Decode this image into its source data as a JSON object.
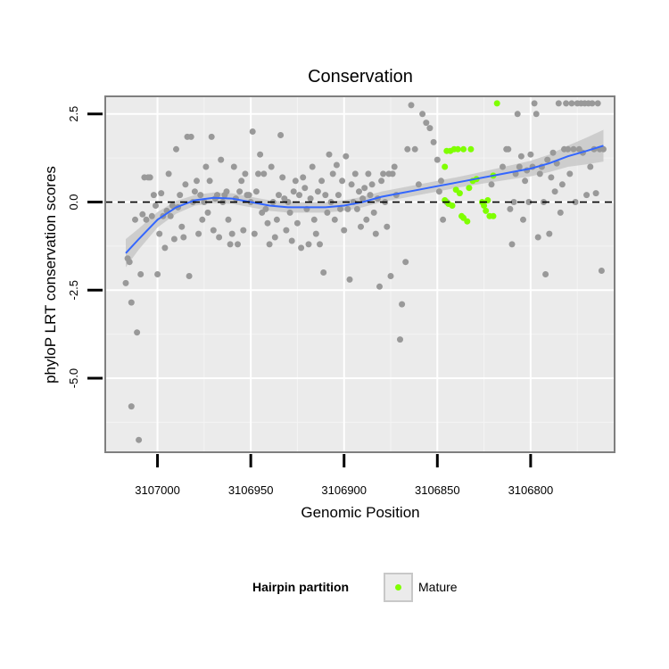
{
  "chart_data": {
    "type": "scatter",
    "title": "Conservation",
    "xlabel": "Genomic Position",
    "ylabel": "phyloP LRT conservation scores",
    "xlim": [
      3107028,
      3106755
    ],
    "ylim": [
      -7.1,
      3.0
    ],
    "x_reversed": true,
    "x_ticks": [
      3107000,
      3106950,
      3106900,
      3106850,
      3106800
    ],
    "y_ticks": [
      2.5,
      0.0,
      -2.5,
      -5.0
    ],
    "y_tick_labels": [
      "2.5",
      "0.0",
      "-2.5",
      "-5.0"
    ],
    "reference_line": {
      "y": 0,
      "style": "dashed",
      "color": "#000000"
    },
    "grid": true,
    "colors": {
      "background": "#ebebeb",
      "panel_border": "#7f7f7f",
      "other_points": "#999999",
      "mature_points": "#7fff00",
      "smooth_line": "#3366ff",
      "ribbon": "#c8c8c8"
    },
    "legend": {
      "title": "Hairpin partition",
      "position": "bottom",
      "entries": [
        {
          "label": "Mature",
          "color": "#7fff00"
        }
      ]
    },
    "series": [
      {
        "name": "Mature",
        "color": "#7fff00",
        "points": [
          [
            3106846,
            1.0
          ],
          [
            3106845,
            1.45
          ],
          [
            3106843,
            1.45
          ],
          [
            3106841,
            1.5
          ],
          [
            3106839,
            1.5
          ],
          [
            3106836,
            1.5
          ],
          [
            3106832,
            1.5
          ],
          [
            3106846,
            0.05
          ],
          [
            3106844,
            -0.05
          ],
          [
            3106842,
            -0.1
          ],
          [
            3106840,
            0.35
          ],
          [
            3106838,
            0.25
          ],
          [
            3106836,
            -0.45
          ],
          [
            3106834,
            -0.55
          ],
          [
            3106837,
            -0.4
          ],
          [
            3106833,
            0.4
          ],
          [
            3106831,
            0.6
          ],
          [
            3106829,
            0.65
          ],
          [
            3106826,
            0.0
          ],
          [
            3106824,
            -0.25
          ],
          [
            3106822,
            -0.4
          ],
          [
            3106820,
            -0.4
          ],
          [
            3106825,
            -0.1
          ],
          [
            3106823,
            0.05
          ],
          [
            3106820,
            0.75
          ],
          [
            3106818,
            2.8
          ]
        ]
      },
      {
        "name": "",
        "color": "#999999",
        "points": [
          [
            3107017,
            -2.3
          ],
          [
            3107016,
            -1.6
          ],
          [
            3107015,
            -1.7
          ],
          [
            3107014,
            -2.85
          ],
          [
            3107014,
            -5.8
          ],
          [
            3107012,
            -0.5
          ],
          [
            3107011,
            -3.7
          ],
          [
            3107010,
            -6.75
          ],
          [
            3107009,
            -2.05
          ],
          [
            3107008,
            -0.35
          ],
          [
            3107007,
            0.7
          ],
          [
            3107006,
            -0.5
          ],
          [
            3107005,
            0.7
          ],
          [
            3107004,
            0.7
          ],
          [
            3107003,
            -0.4
          ],
          [
            3107002,
            0.2
          ],
          [
            3107001,
            -0.1
          ],
          [
            3107000,
            -2.05
          ],
          [
            3106999,
            -0.9
          ],
          [
            3106998,
            0.25
          ],
          [
            3106997,
            -0.4
          ],
          [
            3106996,
            -1.3
          ],
          [
            3106995,
            -0.25
          ],
          [
            3106994,
            0.8
          ],
          [
            3106993,
            -0.4
          ],
          [
            3106992,
            -0.1
          ],
          [
            3106991,
            -1.05
          ],
          [
            3106990,
            1.5
          ],
          [
            3106989,
            -0.15
          ],
          [
            3106988,
            0.2
          ],
          [
            3106987,
            -0.7
          ],
          [
            3106986,
            -1.0
          ],
          [
            3106985,
            0.5
          ],
          [
            3106984,
            1.85
          ],
          [
            3106983,
            -2.1
          ],
          [
            3106982,
            1.85
          ],
          [
            3106981,
            0.0
          ],
          [
            3106980,
            0.3
          ],
          [
            3106979,
            0.6
          ],
          [
            3106978,
            -0.9
          ],
          [
            3106977,
            0.2
          ],
          [
            3106976,
            -0.5
          ],
          [
            3106975,
            0.0
          ],
          [
            3106974,
            1.0
          ],
          [
            3106973,
            -0.3
          ],
          [
            3106972,
            0.6
          ],
          [
            3106971,
            1.85
          ],
          [
            3106970,
            -0.8
          ],
          [
            3106969,
            0.1
          ],
          [
            3106968,
            0.2
          ],
          [
            3106967,
            -1.0
          ],
          [
            3106966,
            1.2
          ],
          [
            3106965,
            0.0
          ],
          [
            3106964,
            0.2
          ],
          [
            3106963,
            0.3
          ],
          [
            3106962,
            -0.5
          ],
          [
            3106961,
            -1.2
          ],
          [
            3106960,
            -0.9
          ],
          [
            3106959,
            1.0
          ],
          [
            3106958,
            0.1
          ],
          [
            3106957,
            -1.2
          ],
          [
            3106956,
            0.3
          ],
          [
            3106955,
            0.6
          ],
          [
            3106954,
            -0.8
          ],
          [
            3106953,
            0.8
          ],
          [
            3106952,
            0.2
          ],
          [
            3106951,
            0.2
          ],
          [
            3106950,
            0.0
          ],
          [
            3106949,
            2.0
          ],
          [
            3106948,
            -0.9
          ],
          [
            3106947,
            0.3
          ],
          [
            3106946,
            0.8
          ],
          [
            3106945,
            1.35
          ],
          [
            3106944,
            -0.3
          ],
          [
            3106943,
            0.8
          ],
          [
            3106942,
            -0.2
          ],
          [
            3106941,
            -0.6
          ],
          [
            3106940,
            -1.2
          ],
          [
            3106939,
            1.0
          ],
          [
            3106938,
            0.0
          ],
          [
            3106937,
            -1.0
          ],
          [
            3106936,
            -0.5
          ],
          [
            3106935,
            0.2
          ],
          [
            3106934,
            1.9
          ],
          [
            3106933,
            0.7
          ],
          [
            3106932,
            0.1
          ],
          [
            3106931,
            -0.8
          ],
          [
            3106930,
            0.0
          ],
          [
            3106929,
            -0.3
          ],
          [
            3106928,
            -1.1
          ],
          [
            3106927,
            0.3
          ],
          [
            3106926,
            0.6
          ],
          [
            3106925,
            -0.6
          ],
          [
            3106924,
            0.2
          ],
          [
            3106923,
            -1.3
          ],
          [
            3106922,
            0.7
          ],
          [
            3106921,
            0.4
          ],
          [
            3106920,
            -0.2
          ],
          [
            3106919,
            -1.2
          ],
          [
            3106918,
            0.1
          ],
          [
            3106917,
            1.0
          ],
          [
            3106916,
            -0.5
          ],
          [
            3106915,
            -0.9
          ],
          [
            3106914,
            0.3
          ],
          [
            3106913,
            -1.2
          ],
          [
            3106912,
            0.6
          ],
          [
            3106911,
            -2.0
          ],
          [
            3106910,
            0.2
          ],
          [
            3106909,
            -0.3
          ],
          [
            3106908,
            1.35
          ],
          [
            3106907,
            0.0
          ],
          [
            3106906,
            0.8
          ],
          [
            3106905,
            -0.5
          ],
          [
            3106904,
            1.05
          ],
          [
            3106903,
            0.2
          ],
          [
            3106902,
            -0.2
          ],
          [
            3106901,
            0.6
          ],
          [
            3106900,
            -0.8
          ],
          [
            3106899,
            1.3
          ],
          [
            3106898,
            -0.2
          ],
          [
            3106897,
            -2.2
          ],
          [
            3106896,
            0.5
          ],
          [
            3106895,
            0.0
          ],
          [
            3106894,
            0.8
          ],
          [
            3106893,
            -0.2
          ],
          [
            3106892,
            0.3
          ],
          [
            3106891,
            -0.7
          ],
          [
            3106890,
            0.1
          ],
          [
            3106889,
            0.4
          ],
          [
            3106888,
            -0.5
          ],
          [
            3106887,
            0.8
          ],
          [
            3106886,
            0.2
          ],
          [
            3106885,
            0.5
          ],
          [
            3106884,
            -0.3
          ],
          [
            3106883,
            -0.9
          ],
          [
            3106882,
            0.1
          ],
          [
            3106881,
            -2.4
          ],
          [
            3106880,
            0.6
          ],
          [
            3106879,
            0.8
          ],
          [
            3106878,
            0.0
          ],
          [
            3106877,
            -0.7
          ],
          [
            3106876,
            0.8
          ],
          [
            3106875,
            -2.1
          ],
          [
            3106874,
            0.8
          ],
          [
            3106873,
            1.0
          ],
          [
            3106872,
            0.2
          ],
          [
            3106870,
            -3.9
          ],
          [
            3106869,
            -2.9
          ],
          [
            3106867,
            -1.7
          ],
          [
            3106866,
            1.5
          ],
          [
            3106864,
            2.75
          ],
          [
            3106862,
            1.5
          ],
          [
            3106860,
            0.5
          ],
          [
            3106858,
            2.5
          ],
          [
            3106856,
            2.25
          ],
          [
            3106854,
            2.1
          ],
          [
            3106852,
            1.7
          ],
          [
            3106850,
            1.2
          ],
          [
            3106849,
            0.3
          ],
          [
            3106848,
            0.6
          ],
          [
            3106815,
            1.0
          ],
          [
            3106813,
            1.5
          ],
          [
            3106812,
            1.5
          ],
          [
            3106811,
            -0.2
          ],
          [
            3106810,
            -1.2
          ],
          [
            3106809,
            0.0
          ],
          [
            3106808,
            0.8
          ],
          [
            3106807,
            2.5
          ],
          [
            3106806,
            1.0
          ],
          [
            3106805,
            1.3
          ],
          [
            3106804,
            -0.5
          ],
          [
            3106803,
            0.6
          ],
          [
            3106802,
            0.9
          ],
          [
            3106801,
            0.0
          ],
          [
            3106800,
            1.35
          ],
          [
            3106799,
            1.0
          ],
          [
            3106798,
            2.8
          ],
          [
            3106797,
            2.5
          ],
          [
            3106796,
            -1.0
          ],
          [
            3106795,
            0.8
          ],
          [
            3106794,
            1.0
          ],
          [
            3106793,
            0.0
          ],
          [
            3106792,
            -2.05
          ],
          [
            3106791,
            1.2
          ],
          [
            3106790,
            -0.9
          ],
          [
            3106789,
            0.7
          ],
          [
            3106788,
            1.4
          ],
          [
            3106787,
            0.3
          ],
          [
            3106786,
            1.1
          ],
          [
            3106785,
            2.8
          ],
          [
            3106784,
            -0.3
          ],
          [
            3106783,
            0.5
          ],
          [
            3106782,
            1.5
          ],
          [
            3106781,
            2.8
          ],
          [
            3106780,
            1.5
          ],
          [
            3106779,
            0.8
          ],
          [
            3106778,
            2.8
          ],
          [
            3106777,
            1.5
          ],
          [
            3106776,
            0.0
          ],
          [
            3106775,
            2.8
          ],
          [
            3106774,
            1.5
          ],
          [
            3106773,
            2.8
          ],
          [
            3106772,
            1.4
          ],
          [
            3106771,
            2.8
          ],
          [
            3106770,
            0.2
          ],
          [
            3106769,
            2.8
          ],
          [
            3106768,
            1.0
          ],
          [
            3106767,
            2.8
          ],
          [
            3106766,
            1.5
          ],
          [
            3106765,
            0.25
          ],
          [
            3106764,
            2.8
          ],
          [
            3106763,
            1.5
          ],
          [
            3106762,
            -1.95
          ],
          [
            3106761,
            1.5
          ],
          [
            3106845,
            0.0
          ],
          [
            3106847,
            -0.5
          ],
          [
            3106821,
            0.5
          ]
        ]
      }
    ],
    "smooth": {
      "x": [
        3107017,
        3107010,
        3107000,
        3106990,
        3106980,
        3106970,
        3106960,
        3106950,
        3106940,
        3106930,
        3106920,
        3106910,
        3106900,
        3106890,
        3106880,
        3106870,
        3106860,
        3106850,
        3106840,
        3106830,
        3106820,
        3106810,
        3106800,
        3106790,
        3106780,
        3106770,
        3106761
      ],
      "y": [
        -1.45,
        -1.05,
        -0.5,
        -0.15,
        0.05,
        0.12,
        0.1,
        0.0,
        -0.1,
        -0.15,
        -0.15,
        -0.15,
        -0.1,
        0.0,
        0.15,
        0.25,
        0.35,
        0.45,
        0.55,
        0.65,
        0.75,
        0.85,
        0.95,
        1.1,
        1.3,
        1.45,
        1.6
      ],
      "se": [
        0.4,
        0.3,
        0.22,
        0.18,
        0.15,
        0.15,
        0.15,
        0.15,
        0.15,
        0.15,
        0.15,
        0.15,
        0.15,
        0.15,
        0.15,
        0.15,
        0.15,
        0.15,
        0.15,
        0.16,
        0.18,
        0.2,
        0.22,
        0.25,
        0.3,
        0.38,
        0.45
      ]
    }
  }
}
